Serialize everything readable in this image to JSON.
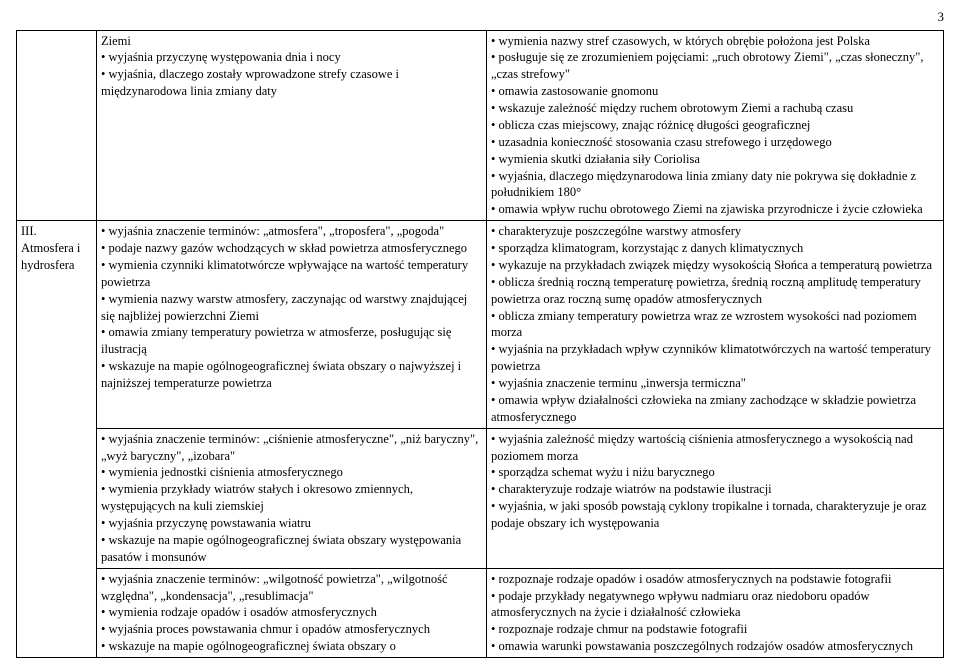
{
  "page_number": "3",
  "row1": {
    "label": "",
    "left": [
      "Ziemi",
      "wyjaśnia przyczynę występowania dnia i nocy",
      "wyjaśnia, dlaczego zostały wprowadzone strefy czasowe i międzynarodowa linia zmiany daty"
    ],
    "right": [
      "wymienia nazwy stref czasowych, w których obrębie położona jest Polska",
      "posługuje się ze zrozumieniem pojęciami: „ruch obrotowy Ziemi\", „czas słoneczny\", „czas strefowy\"",
      "omawia zastosowanie gnomonu",
      "wskazuje zależność między ruchem obrotowym Ziemi a rachubą czasu",
      "oblicza czas miejscowy, znając różnicę długości geograficznej",
      "uzasadnia konieczność stosowania czasu strefowego i urzędowego",
      "wymienia skutki działania siły Coriolisa",
      "wyjaśnia, dlaczego międzynarodowa linia zmiany daty nie pokrywa się dokładnie z południkiem 180°",
      "omawia wpływ ruchu obrotowego Ziemi na zjawiska przyrodnicze i życie człowieka"
    ]
  },
  "row2": {
    "label_line1": "III.",
    "label_line2": "Atmosfera i hydrosfera",
    "left": [
      "wyjaśnia znaczenie terminów: „atmosfera\", „troposfera\", „pogoda\"",
      "podaje nazwy gazów wchodzących w skład powietrza atmosferycznego",
      "wymienia czynniki klimatotwórcze wpływające na wartość temperatury powietrza",
      "wymienia nazwy warstw atmosfery, zaczynając od warstwy znajdującej się najbliżej powierzchni Ziemi",
      "omawia zmiany temperatury powietrza w atmosferze, posługując się ilustracją",
      "wskazuje na mapie ogólnogeograficznej świata obszary o najwyższej i najniższej temperaturze powietrza"
    ],
    "right": [
      "charakteryzuje poszczególne warstwy atmosfery",
      "sporządza klimatogram, korzystając z danych klimatycznych",
      "wykazuje na przykładach związek między wysokością Słońca a temperaturą powietrza",
      "oblicza średnią roczną temperaturę powietrza, średnią roczną amplitudę temperatury powietrza oraz roczną sumę opadów atmosferycznych",
      "oblicza zmiany temperatury powietrza wraz ze wzrostem wysokości nad poziomem morza",
      "wyjaśnia na przykładach wpływ czynników klimatotwórczych na wartość temperatury powietrza",
      "wyjaśnia znaczenie terminu „inwersja termiczna\"",
      "omawia wpływ działalności człowieka na zmiany zachodzące w składzie powietrza atmosferycznego"
    ]
  },
  "row3": {
    "left": [
      "wyjaśnia znaczenie terminów: „ciśnienie atmosferyczne\", „niż baryczny\", „wyż baryczny\", „izobara\"",
      "wymienia jednostki ciśnienia atmosferycznego",
      "wymienia przykłady wiatrów stałych i okresowo zmiennych, występujących na kuli ziemskiej",
      "wyjaśnia przyczynę powstawania wiatru",
      "wskazuje na mapie ogólnogeograficznej świata obszary występowania pasatów i monsunów"
    ],
    "right": [
      "wyjaśnia zależność między wartością ciśnienia atmosferycznego a wysokością nad poziomem morza",
      "sporządza schemat wyżu i niżu barycznego",
      "charakteryzuje rodzaje wiatrów na podstawie ilustracji",
      "wyjaśnia, w jaki sposób powstają cyklony tropikalne i tornada, charakteryzuje je oraz podaje obszary ich występowania"
    ]
  },
  "row4": {
    "left": [
      "wyjaśnia znaczenie terminów: „wilgotność powietrza\", „wilgotność względna\", „kondensacja\", „resublimacja\"",
      "wymienia rodzaje opadów i osadów atmosferycznych",
      "wyjaśnia proces powstawania chmur i opadów atmosferycznych",
      "wskazuje na mapie ogólnogeograficznej świata obszary o"
    ],
    "right": [
      "rozpoznaje rodzaje opadów i osadów atmosferycznych na podstawie fotografii",
      "podaje przykłady negatywnego wpływu nadmiaru oraz niedoboru opadów atmosferycznych na życie i działalność człowieka",
      "rozpoznaje rodzaje chmur na podstawie fotografii",
      "omawia warunki powstawania poszczególnych rodzajów osadów atmosferycznych"
    ]
  }
}
